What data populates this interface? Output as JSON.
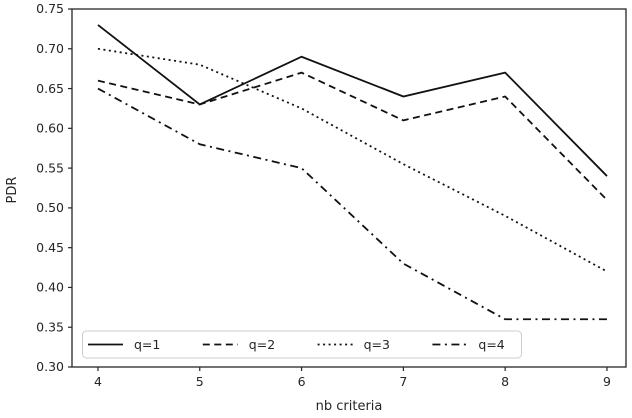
{
  "chart_data": {
    "type": "line",
    "title": "",
    "xlabel": "nb criteria",
    "ylabel": "PDR",
    "x": [
      4,
      5,
      6,
      7,
      8,
      9
    ],
    "series": [
      {
        "name": "q=1",
        "style": "solid",
        "values": [
          0.73,
          0.63,
          0.69,
          0.64,
          0.67,
          0.54
        ]
      },
      {
        "name": "q=2",
        "style": "dashed",
        "values": [
          0.66,
          0.63,
          0.67,
          0.61,
          0.64,
          0.51
        ]
      },
      {
        "name": "q=3",
        "style": "dotted",
        "values": [
          0.7,
          0.68,
          0.625,
          0.555,
          0.49,
          0.42
        ]
      },
      {
        "name": "q=4",
        "style": "dashdot",
        "values": [
          0.65,
          0.58,
          0.55,
          0.43,
          0.36,
          0.36
        ]
      }
    ],
    "xlim": [
      3.745,
      9.187
    ],
    "ylim": [
      0.3,
      0.75
    ],
    "xticks": [
      4,
      5,
      6,
      7,
      8,
      9
    ],
    "xtick_labels": [
      "4",
      "5",
      "6",
      "7",
      "8",
      "9"
    ],
    "yticks": [
      0.3,
      0.35,
      0.4,
      0.45,
      0.5,
      0.55,
      0.6,
      0.65,
      0.7,
      0.75
    ],
    "ytick_labels": [
      "0.30",
      "0.35",
      "0.40",
      "0.45",
      "0.50",
      "0.55",
      "0.60",
      "0.65",
      "0.70",
      "0.75"
    ],
    "grid": false,
    "legend_position": "lower-left-inside",
    "line_color": "#111111",
    "axis_color": "#262626",
    "legend_border_color": "#cccccc",
    "background_color": "#ffffff"
  }
}
